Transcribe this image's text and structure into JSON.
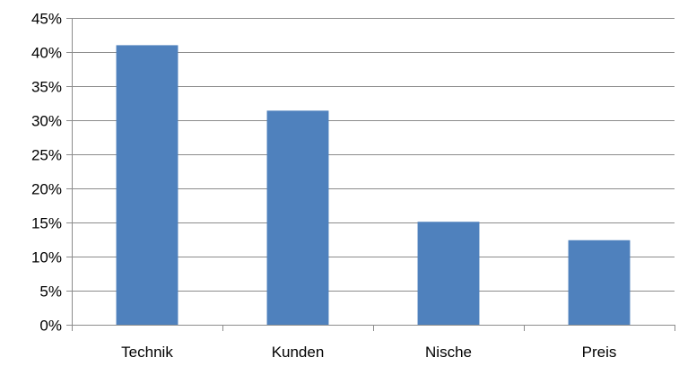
{
  "chart_data": {
    "type": "bar",
    "title": "",
    "xlabel": "",
    "ylabel": "",
    "categories": [
      "Technik",
      "Kunden",
      "Nische",
      "Preis"
    ],
    "values": [
      41,
      31.4,
      15.1,
      12.4
    ],
    "ylim": [
      0,
      45
    ],
    "yticks": [
      0,
      5,
      10,
      15,
      20,
      25,
      30,
      35,
      40,
      45
    ],
    "ytick_labels": [
      "0%",
      "5%",
      "10%",
      "15%",
      "20%",
      "25%",
      "30%",
      "35%",
      "40%",
      "45%"
    ],
    "grid": true,
    "legend": "none",
    "bar_color": "#4f81bd",
    "grid_color": "#8c8c8c",
    "axis_color": "#8c8c8c"
  }
}
